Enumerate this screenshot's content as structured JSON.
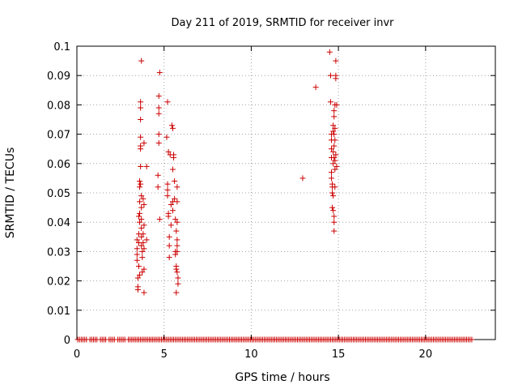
{
  "chart_data": {
    "type": "scatter",
    "title": "Day 211 of 2019, SRMTID for receiver invr",
    "xlabel": "GPS time / hours",
    "ylabel": "SRMTID / TECUs",
    "xlim": [
      0,
      24
    ],
    "ylim": [
      0,
      0.1
    ],
    "x_ticks": [
      0,
      5,
      10,
      15,
      20
    ],
    "x_tick_labels": [
      "0",
      "5",
      "10",
      "15",
      "20"
    ],
    "y_ticks": [
      0,
      0.01,
      0.02,
      0.03,
      0.04,
      0.05,
      0.06,
      0.07,
      0.08,
      0.09,
      0.1
    ],
    "y_tick_labels": [
      "0",
      "0.01",
      "0.02",
      "0.03",
      "0.04",
      "0.05",
      "0.06",
      "0.07",
      "0.08",
      "0.09",
      "0.1"
    ],
    "grid": true,
    "marker": "+",
    "color": "#cc0000",
    "series": [
      {
        "name": "SRMTID",
        "points": [
          [
            3.45,
            0.034
          ],
          [
            3.45,
            0.031
          ],
          [
            3.45,
            0.029
          ],
          [
            3.45,
            0.027
          ],
          [
            3.5,
            0.021
          ],
          [
            3.5,
            0.018
          ],
          [
            3.5,
            0.017
          ],
          [
            3.55,
            0.042
          ],
          [
            3.55,
            0.036
          ],
          [
            3.55,
            0.033
          ],
          [
            3.55,
            0.025
          ],
          [
            3.6,
            0.054
          ],
          [
            3.6,
            0.052
          ],
          [
            3.6,
            0.047
          ],
          [
            3.6,
            0.043
          ],
          [
            3.6,
            0.04
          ],
          [
            3.6,
            0.022
          ],
          [
            3.65,
            0.081
          ],
          [
            3.65,
            0.079
          ],
          [
            3.65,
            0.075
          ],
          [
            3.65,
            0.069
          ],
          [
            3.65,
            0.066
          ],
          [
            3.65,
            0.065
          ],
          [
            3.65,
            0.059
          ],
          [
            3.65,
            0.053
          ],
          [
            3.7,
            0.095
          ],
          [
            3.7,
            0.049
          ],
          [
            3.7,
            0.045
          ],
          [
            3.7,
            0.041
          ],
          [
            3.7,
            0.038
          ],
          [
            3.7,
            0.035
          ],
          [
            3.7,
            0.032
          ],
          [
            3.75,
            0.03
          ],
          [
            3.75,
            0.028
          ],
          [
            3.75,
            0.023
          ],
          [
            3.8,
            0.048
          ],
          [
            3.8,
            0.036
          ],
          [
            3.8,
            0.033
          ],
          [
            3.85,
            0.067
          ],
          [
            3.85,
            0.046
          ],
          [
            3.85,
            0.039
          ],
          [
            3.85,
            0.031
          ],
          [
            3.85,
            0.024
          ],
          [
            3.85,
            0.016
          ],
          [
            4.0,
            0.059
          ],
          [
            4.0,
            0.034
          ],
          [
            4.65,
            0.056
          ],
          [
            4.65,
            0.052
          ],
          [
            4.7,
            0.083
          ],
          [
            4.7,
            0.079
          ],
          [
            4.7,
            0.077
          ],
          [
            4.7,
            0.07
          ],
          [
            4.7,
            0.067
          ],
          [
            4.75,
            0.091
          ],
          [
            4.75,
            0.041
          ],
          [
            5.15,
            0.069
          ],
          [
            5.2,
            0.081
          ],
          [
            5.2,
            0.053
          ],
          [
            5.2,
            0.051
          ],
          [
            5.2,
            0.049
          ],
          [
            5.25,
            0.064
          ],
          [
            5.25,
            0.043
          ],
          [
            5.25,
            0.042
          ],
          [
            5.3,
            0.035
          ],
          [
            5.3,
            0.032
          ],
          [
            5.3,
            0.028
          ],
          [
            5.35,
            0.063
          ],
          [
            5.4,
            0.046
          ],
          [
            5.4,
            0.039
          ],
          [
            5.45,
            0.073
          ],
          [
            5.5,
            0.072
          ],
          [
            5.5,
            0.058
          ],
          [
            5.5,
            0.047
          ],
          [
            5.5,
            0.044
          ],
          [
            5.55,
            0.063
          ],
          [
            5.55,
            0.062
          ],
          [
            5.6,
            0.054
          ],
          [
            5.6,
            0.048
          ],
          [
            5.65,
            0.041
          ],
          [
            5.65,
            0.03
          ],
          [
            5.65,
            0.029
          ],
          [
            5.7,
            0.037
          ],
          [
            5.7,
            0.025
          ],
          [
            5.7,
            0.024
          ],
          [
            5.75,
            0.052
          ],
          [
            5.75,
            0.047
          ],
          [
            5.75,
            0.04
          ],
          [
            5.75,
            0.034
          ],
          [
            5.75,
            0.032
          ],
          [
            5.75,
            0.03
          ],
          [
            5.75,
            0.023
          ],
          [
            5.7,
            0.016
          ],
          [
            5.8,
            0.021
          ],
          [
            5.8,
            0.019
          ],
          [
            12.95,
            0.055
          ],
          [
            13.7,
            0.086
          ],
          [
            14.5,
            0.098
          ],
          [
            14.55,
            0.09
          ],
          [
            14.55,
            0.081
          ],
          [
            14.6,
            0.07
          ],
          [
            14.6,
            0.068
          ],
          [
            14.6,
            0.065
          ],
          [
            14.6,
            0.062
          ],
          [
            14.6,
            0.057
          ],
          [
            14.6,
            0.055
          ],
          [
            14.65,
            0.053
          ],
          [
            14.65,
            0.052
          ],
          [
            14.65,
            0.05
          ],
          [
            14.65,
            0.045
          ],
          [
            14.7,
            0.073
          ],
          [
            14.7,
            0.071
          ],
          [
            14.7,
            0.064
          ],
          [
            14.7,
            0.06
          ],
          [
            14.7,
            0.049
          ],
          [
            14.7,
            0.044
          ],
          [
            14.75,
            0.078
          ],
          [
            14.75,
            0.076
          ],
          [
            14.75,
            0.07
          ],
          [
            14.75,
            0.066
          ],
          [
            14.75,
            0.062
          ],
          [
            14.75,
            0.042
          ],
          [
            14.75,
            0.04
          ],
          [
            14.75,
            0.037
          ],
          [
            14.8,
            0.08
          ],
          [
            14.8,
            0.072
          ],
          [
            14.8,
            0.068
          ],
          [
            14.8,
            0.061
          ],
          [
            14.8,
            0.058
          ],
          [
            14.8,
            0.052
          ],
          [
            14.85,
            0.095
          ],
          [
            14.85,
            0.09
          ],
          [
            14.85,
            0.089
          ],
          [
            14.85,
            0.063
          ],
          [
            14.9,
            0.08
          ],
          [
            14.9,
            0.059
          ]
        ],
        "zero_points_x": [
          0.05,
          0.15,
          0.25,
          0.35,
          0.45,
          0.55,
          0.75,
          0.85,
          0.95,
          1.05,
          1.15,
          1.35,
          1.45,
          1.55,
          1.65,
          1.85,
          1.95,
          2.05,
          2.15,
          2.35,
          2.45,
          2.55,
          2.65,
          2.75,
          2.95,
          3.05,
          3.15,
          3.25,
          3.35,
          3.45,
          3.55,
          3.65,
          3.75,
          3.85,
          3.95,
          4.05,
          4.15,
          4.25,
          4.35,
          4.45,
          4.55,
          4.65,
          4.75,
          4.85,
          4.95,
          5.05,
          5.15,
          5.25,
          5.35,
          5.45,
          5.55,
          5.65,
          5.75,
          5.85,
          5.95,
          6.05,
          6.15,
          6.25,
          6.35,
          6.45,
          6.55,
          6.65,
          6.75,
          6.85,
          6.95,
          7.05,
          7.15,
          7.25,
          7.35,
          7.45,
          7.55,
          7.65,
          7.75,
          7.85,
          7.95,
          8.05,
          8.15,
          8.25,
          8.35,
          8.45,
          8.55,
          8.65,
          8.75,
          8.85,
          8.95,
          9.05,
          9.15,
          9.25,
          9.35,
          9.45,
          9.55,
          9.65,
          9.75,
          9.85,
          9.95,
          10.05,
          10.15,
          10.25,
          10.35,
          10.45,
          10.55,
          10.65,
          10.75,
          10.85,
          10.95,
          11.05,
          11.15,
          11.25,
          11.35,
          11.45,
          11.55,
          11.65,
          11.75,
          11.85,
          11.95,
          12.05,
          12.15,
          12.25,
          12.35,
          12.45,
          12.55,
          12.65,
          12.75,
          12.85,
          12.95,
          13.05,
          13.15,
          13.25,
          13.35,
          13.45,
          13.55,
          13.65,
          13.75,
          13.85,
          13.95,
          14.05,
          14.15,
          14.25,
          14.35,
          14.45,
          14.55,
          14.65,
          14.75,
          14.85,
          14.95,
          15.05,
          15.15,
          15.25,
          15.35,
          15.45,
          15.55,
          15.65,
          15.75,
          15.85,
          15.95,
          16.05,
          16.15,
          16.25,
          16.35,
          16.45,
          16.55,
          16.65,
          16.75,
          16.85,
          16.95,
          17.05,
          17.15,
          17.25,
          17.35,
          17.45,
          17.55,
          17.65,
          17.75,
          17.85,
          17.95,
          18.05,
          18.15,
          18.25,
          18.35,
          18.45,
          18.55,
          18.65,
          18.75,
          18.85,
          18.95,
          19.05,
          19.15,
          19.25,
          19.35,
          19.45,
          19.55,
          19.65,
          19.75,
          19.85,
          19.95,
          20.05,
          20.15,
          20.25,
          20.35,
          20.45,
          20.55,
          20.65,
          20.75,
          20.85,
          20.95,
          21.05,
          21.15,
          21.25,
          21.35,
          21.45,
          21.55,
          21.65,
          21.75,
          21.85,
          21.95,
          22.05,
          22.15,
          22.25,
          22.35,
          22.45,
          22.55,
          22.65
        ]
      }
    ]
  }
}
